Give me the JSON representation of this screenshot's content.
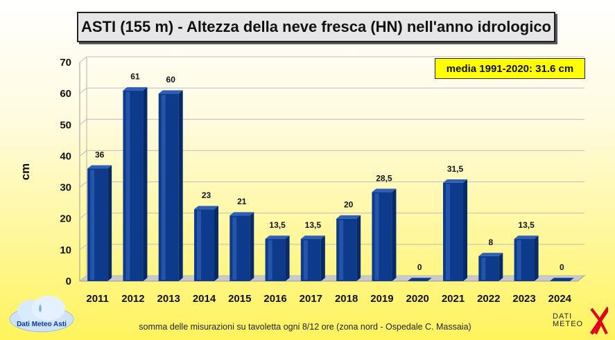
{
  "title": "ASTI (155 m) - Altezza della neve fresca (HN) nell'anno idrologico",
  "annotation": "media 1991-2020: 31.6 cm",
  "footnote": "somma delle misurazioni su tavoletta ogni 8/12 ore (zona nord - Ospedale C. Massaia)",
  "logo_left": "Dati Meteo Asti",
  "logo_right": [
    "DATI",
    "METEO"
  ],
  "colors": {
    "bar": "#0d3a8a",
    "bar_top": "#2f5fb8",
    "bar_side": "#082a68",
    "accent": "#e0001a",
    "annotation_bg": "#ffff00"
  },
  "chart_data": {
    "type": "bar",
    "categories": [
      "2011",
      "2012",
      "2013",
      "2014",
      "2015",
      "2016",
      "2017",
      "2018",
      "2019",
      "2020",
      "2021",
      "2022",
      "2023",
      "2024"
    ],
    "values": [
      36,
      61,
      60,
      23,
      21,
      13.5,
      13.5,
      20,
      28.5,
      0,
      31.5,
      8,
      13.5,
      0
    ],
    "data_labels": [
      "36",
      "61",
      "60",
      "23",
      "21",
      "13,5",
      "13,5",
      "20",
      "28,5",
      "0",
      "31,5",
      "8",
      "13,5",
      "0"
    ],
    "title": "ASTI (155 m) - Altezza della neve fresca (HN) nell'anno idrologico",
    "xlabel": "",
    "ylabel": "cm",
    "ylim": [
      0,
      70
    ],
    "yticks": [
      0,
      10,
      20,
      30,
      40,
      50,
      60,
      70
    ],
    "grid": true
  }
}
